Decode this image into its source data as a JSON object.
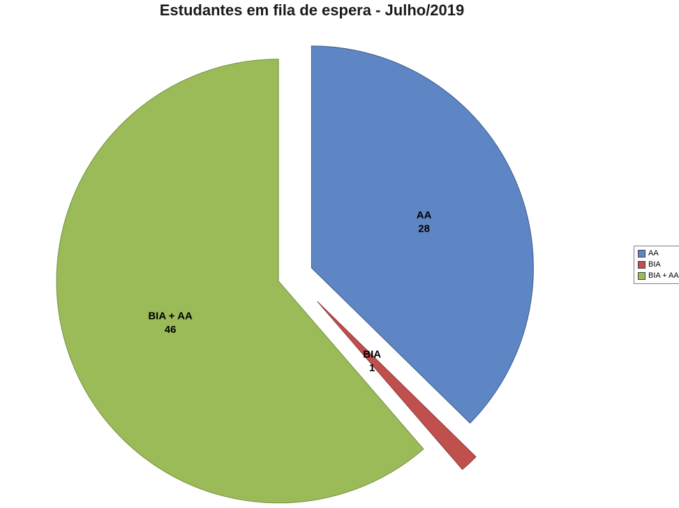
{
  "chart_data": {
    "type": "pie",
    "title": "Estudantes em fila de espera - Julho/2019",
    "total": 75,
    "legend_position": "right",
    "start_angle_deg": 0,
    "direction": "clockwise",
    "slices": [
      {
        "id": "aa",
        "label": "AA",
        "value": 28,
        "color": "#5E86C4",
        "border": "#3C5A8A",
        "explode": 0.09,
        "label_r": 0.55
      },
      {
        "id": "bia",
        "label": "BIA",
        "value": 1,
        "color": "#C0504D",
        "border": "#8C3836",
        "explode": 0.16,
        "label_r": 0.36
      },
      {
        "id": "bia-aa",
        "label": "BIA + AA",
        "value": 46,
        "color": "#9BBB59",
        "border": "#71913D",
        "explode": 0.07,
        "label_r": 0.52
      }
    ]
  }
}
